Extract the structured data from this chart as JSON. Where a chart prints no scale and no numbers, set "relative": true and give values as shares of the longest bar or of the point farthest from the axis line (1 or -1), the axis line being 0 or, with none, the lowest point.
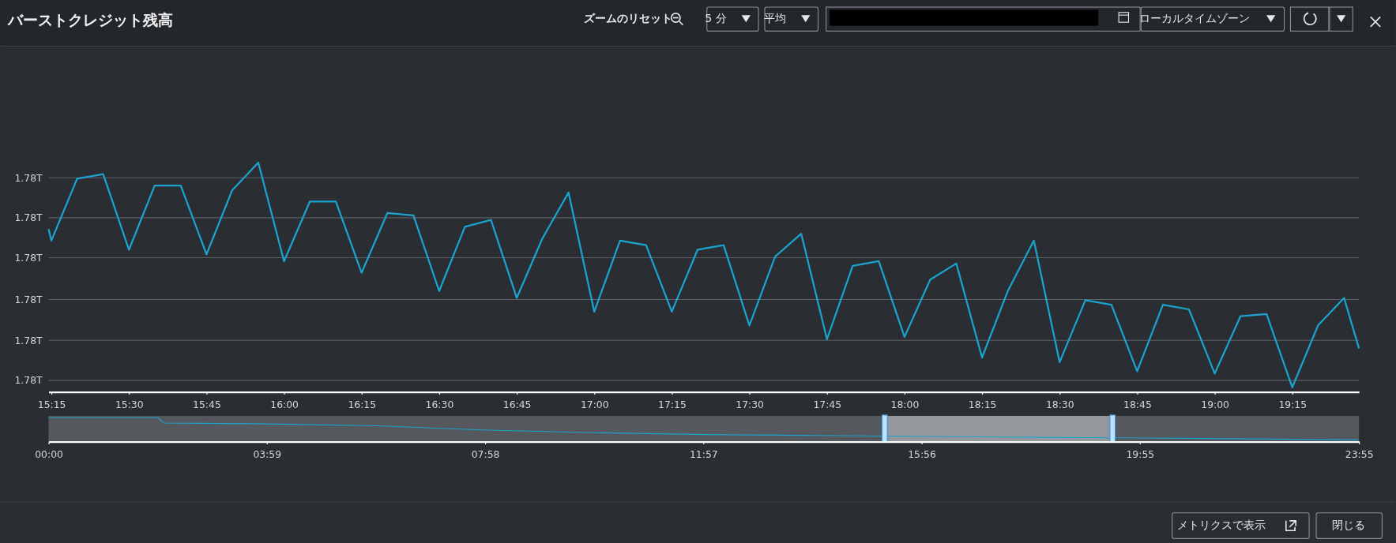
{
  "chart_data": [
    {
      "type": "line",
      "title": "バーストクレジット残高",
      "relative": true,
      "grid": "y",
      "marker": "none",
      "line_style": "solid",
      "annotations": [
        "ズームのリセット",
        "5 分",
        "平均",
        "ローカルタイムゾーン",
        "メトリクスで表示",
        "閉じる",
        "1.78T",
        "1.78T",
        "1.78T",
        "1.78T",
        "1.78T",
        "1.78T"
      ],
      "x": [
        15.241,
        15.25,
        15.333,
        15.417,
        15.5,
        15.583,
        15.667,
        15.75,
        15.833,
        15.917,
        16.0,
        16.083,
        16.167,
        16.25,
        16.333,
        16.417,
        16.5,
        16.583,
        16.667,
        16.75,
        16.833,
        16.917,
        17.0,
        17.083,
        17.167,
        17.25,
        17.333,
        17.417,
        17.5,
        17.583,
        17.667,
        17.75,
        17.833,
        17.917,
        18.0,
        18.083,
        18.167,
        18.25,
        18.333,
        18.417,
        18.5,
        18.583,
        18.667,
        18.75,
        18.833,
        18.917,
        19.0,
        19.083,
        19.167,
        19.25,
        19.333,
        19.417,
        19.465
      ],
      "series": [
        {
          "color": "#1ba3cf",
          "values": [
            0.71,
            0.66,
            0.93,
            0.95,
            0.62,
            0.9,
            0.9,
            0.6,
            0.88,
            1.0,
            0.57,
            0.83,
            0.83,
            0.52,
            0.78,
            0.77,
            0.44,
            0.72,
            0.75,
            0.41,
            0.67,
            0.87,
            0.35,
            0.66,
            0.64,
            0.35,
            0.62,
            0.64,
            0.29,
            0.59,
            0.69,
            0.23,
            0.55,
            0.57,
            0.24,
            0.49,
            0.56,
            0.15,
            0.44,
            0.66,
            0.13,
            0.4,
            0.38,
            0.09,
            0.38,
            0.36,
            0.08,
            0.33,
            0.34,
            0.02,
            0.29,
            0.41,
            0.19
          ]
        }
      ],
      "xlim": [
        15.241,
        19.465
      ],
      "xticks": [
        {
          "value": 15.25,
          "label": "15:15"
        },
        {
          "value": 15.5,
          "label": "15:30"
        },
        {
          "value": 15.75,
          "label": "15:45"
        },
        {
          "value": 16.0,
          "label": "16:00"
        },
        {
          "value": 16.25,
          "label": "16:15"
        },
        {
          "value": 16.5,
          "label": "16:30"
        },
        {
          "value": 16.75,
          "label": "16:45"
        },
        {
          "value": 17.0,
          "label": "17:00"
        },
        {
          "value": 17.25,
          "label": "17:15"
        },
        {
          "value": 17.5,
          "label": "17:30"
        },
        {
          "value": 17.75,
          "label": "17:45"
        },
        {
          "value": 18.0,
          "label": "18:00"
        },
        {
          "value": 18.25,
          "label": "18:15"
        },
        {
          "value": 18.5,
          "label": "18:30"
        },
        {
          "value": 18.75,
          "label": "18:45"
        },
        {
          "value": 19.0,
          "label": "19:00"
        },
        {
          "value": 19.25,
          "label": "19:15"
        }
      ]
    },
    {
      "type": "line",
      "relative": true,
      "tick_labels": "x",
      "marker": "none",
      "x": [
        0,
        2.0,
        2.1,
        4,
        6,
        8,
        10,
        12,
        14,
        16,
        18,
        20,
        22,
        23.9
      ],
      "series": [
        {
          "color": "#1ba3cf",
          "values": [
            1,
            1,
            0.77,
            0.73,
            0.65,
            0.46,
            0.35,
            0.27,
            0.23,
            0.19,
            0.15,
            0.12,
            0.08,
            0.04
          ]
        }
      ],
      "xlim": [
        0,
        23.917
      ],
      "xticks": [
        {
          "value": 0,
          "label": "00:00"
        },
        {
          "value": 3.983,
          "label": "03:59"
        },
        {
          "value": 7.967,
          "label": "07:58"
        },
        {
          "value": 11.95,
          "label": "11:57"
        },
        {
          "value": 15.933,
          "label": "15:56"
        },
        {
          "value": 19.917,
          "label": "19:55"
        },
        {
          "value": 23.917,
          "label": "23:55"
        }
      ],
      "bands": [
        {
          "axis": "x",
          "from": 15.26,
          "to": 19.42,
          "color": "#a9adb2"
        }
      ]
    }
  ]
}
